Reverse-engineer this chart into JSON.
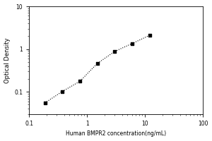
{
  "x_values": [
    0.188,
    0.375,
    0.75,
    1.5,
    3.0,
    6.0,
    12.0
  ],
  "y_values": [
    0.055,
    0.102,
    0.175,
    0.46,
    0.88,
    1.35,
    2.1
  ],
  "xlabel": "Human BMPR2 concentration(ng/mL)",
  "ylabel": "Optical Density",
  "xlim": [
    0.1,
    100
  ],
  "ylim": [
    0.03,
    10
  ],
  "xticks": [
    0.1,
    1,
    10,
    100
  ],
  "yticks": [
    0.1,
    1,
    10
  ],
  "xtick_labels": [
    "0.1",
    "1",
    "10",
    "100"
  ],
  "ytick_labels": [
    "0.1",
    "1",
    "10"
  ],
  "line_color": "black",
  "marker_color": "black",
  "background_color": "#ffffff",
  "xlabel_fontsize": 5.5,
  "ylabel_fontsize": 6,
  "tick_fontsize": 5.5,
  "marker_size": 8,
  "linewidth": 0.8
}
